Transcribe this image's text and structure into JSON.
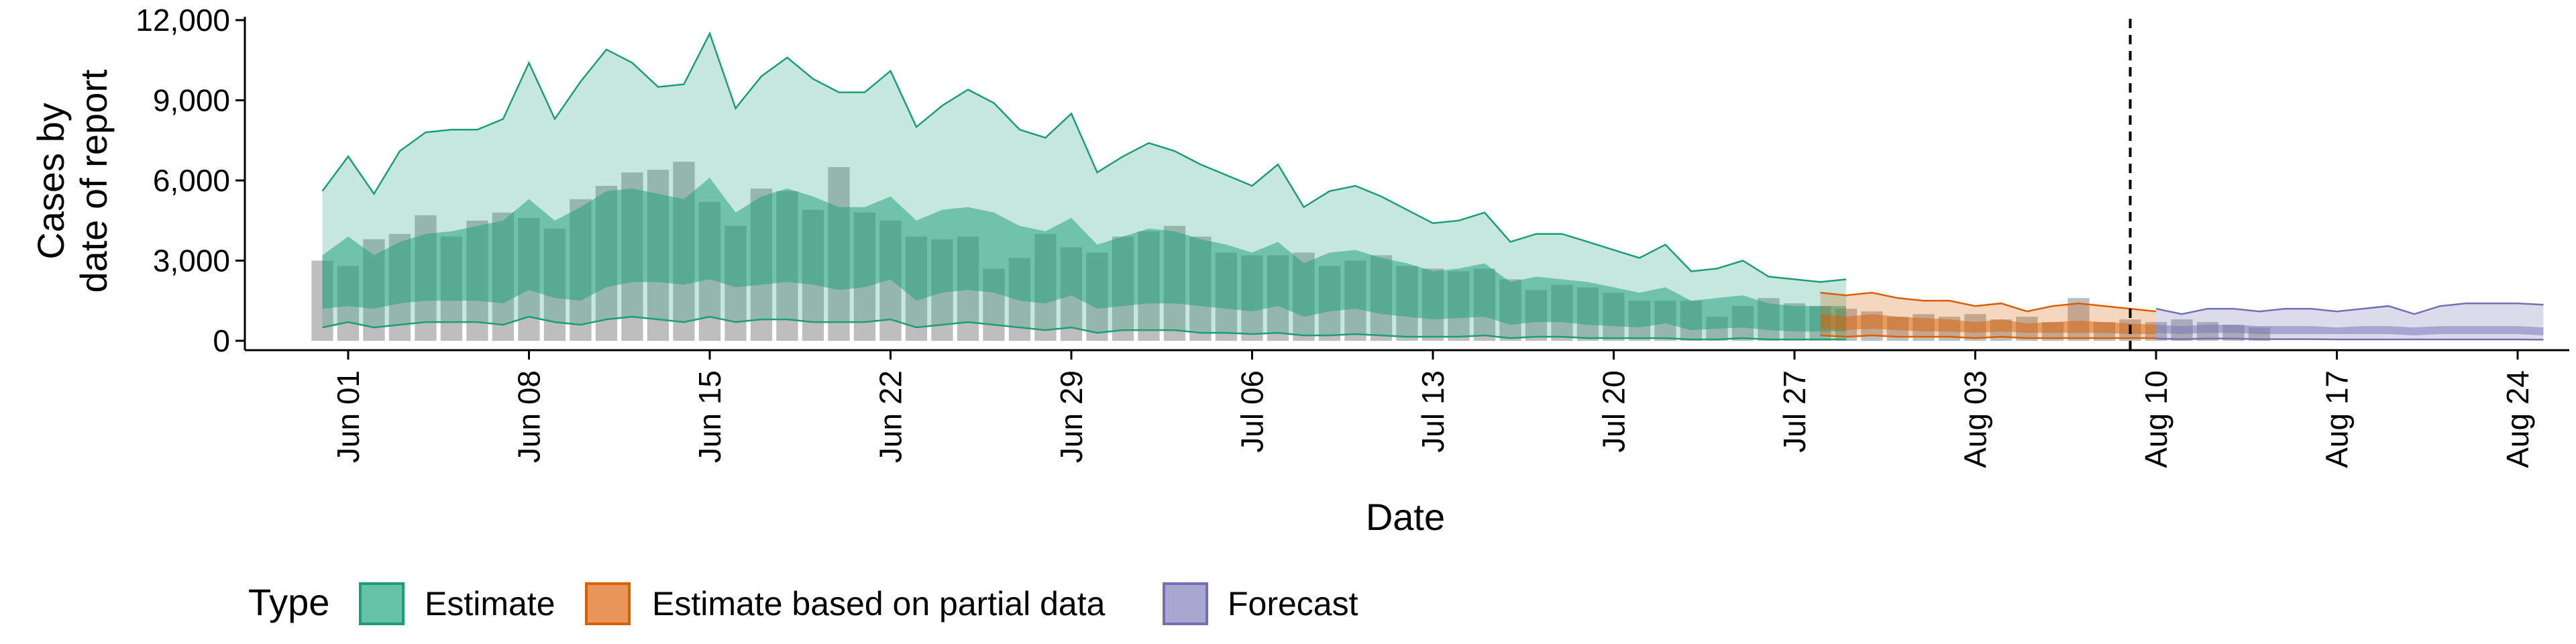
{
  "chart_data": {
    "type": "area",
    "xlabel": "Date",
    "ylabel_lines": [
      "Cases by",
      "date of report"
    ],
    "ylim": [
      0,
      12000
    ],
    "y_ticks": [
      0,
      3000,
      6000,
      9000,
      12000
    ],
    "y_tick_labels": [
      "0",
      "3,000",
      "6,000",
      "9,000",
      "12,000"
    ],
    "x_domain": [
      "2020-05-28",
      "2020-08-26"
    ],
    "x_ticks": [
      "2020-06-01",
      "2020-06-08",
      "2020-06-15",
      "2020-06-22",
      "2020-06-29",
      "2020-07-06",
      "2020-07-13",
      "2020-07-20",
      "2020-07-27",
      "2020-08-03",
      "2020-08-10",
      "2020-08-17",
      "2020-08-24"
    ],
    "x_tick_labels": [
      "Jun 01",
      "Jun 08",
      "Jun 15",
      "Jun 22",
      "Jun 29",
      "Jul 06",
      "Jul 13",
      "Jul 20",
      "Jul 27",
      "Aug 03",
      "Aug 10",
      "Aug 17",
      "Aug 24"
    ],
    "forecast_start_line": "2020-08-09",
    "colors": {
      "reported_bars": "#b3b3b3",
      "estimate": "#1b9e77",
      "partial": "#d95f02",
      "forecast": "#7570b3"
    },
    "legend": {
      "title": "Type",
      "position": "bottom",
      "items": [
        {
          "label": "Estimate",
          "fill": "#66c2a5",
          "stroke": "#1b9e77"
        },
        {
          "label": "Estimate based on partial data",
          "fill": "#e8945b",
          "stroke": "#d95f02"
        },
        {
          "label": "Forecast",
          "fill": "#a9a6d1",
          "stroke": "#7570b3"
        }
      ]
    },
    "reported_cases": {
      "start": "2020-05-31",
      "values": [
        3000,
        2800,
        3800,
        4000,
        4700,
        3900,
        4500,
        4800,
        4600,
        4200,
        5300,
        5800,
        6300,
        6400,
        6700,
        5200,
        4300,
        5700,
        5600,
        4900,
        6500,
        4800,
        4500,
        3900,
        3800,
        3900,
        2700,
        3100,
        4000,
        3500,
        3300,
        3900,
        4100,
        4300,
        3900,
        3300,
        3200,
        3200,
        3300,
        2800,
        3000,
        3200,
        2800,
        2700,
        2600,
        2700,
        2300,
        1900,
        2100,
        2000,
        1800,
        1500,
        1500,
        1500,
        900,
        1300,
        1600,
        1400,
        1300,
        1200,
        1100,
        900,
        1000,
        900,
        1000,
        800,
        900,
        700,
        1600,
        700,
        800,
        700,
        800,
        700,
        600,
        500
      ]
    },
    "series": [
      {
        "name": "Estimate",
        "start": "2020-05-31",
        "upper90": [
          5600,
          6900,
          5500,
          7100,
          7800,
          7900,
          7900,
          8300,
          10400,
          8300,
          9700,
          10900,
          10400,
          9500,
          9600,
          11500,
          8700,
          9900,
          10600,
          9800,
          9300,
          9300,
          10100,
          8000,
          8800,
          9400,
          8900,
          7900,
          7600,
          8500,
          6300,
          6900,
          7400,
          7100,
          6600,
          6200,
          5800,
          6600,
          5000,
          5600,
          5800,
          5400,
          4900,
          4400,
          4500,
          4800,
          3700,
          4000,
          4000,
          3700,
          3400,
          3100,
          3600,
          2600,
          2700,
          3000,
          2400,
          2300,
          2200,
          2300
        ],
        "upper50": [
          3200,
          3900,
          3200,
          3700,
          4000,
          4100,
          4300,
          4500,
          5300,
          4500,
          5000,
          5600,
          5700,
          5500,
          5300,
          6100,
          4800,
          5400,
          5700,
          5400,
          5000,
          5000,
          5400,
          4500,
          4900,
          5000,
          4800,
          4300,
          4100,
          4600,
          3600,
          3900,
          4200,
          4100,
          3800,
          3600,
          3300,
          3700,
          2900,
          3300,
          3400,
          3100,
          2900,
          2600,
          2700,
          2900,
          2200,
          2400,
          2300,
          2200,
          2000,
          1800,
          2000,
          1500,
          1600,
          1700,
          1400,
          1300,
          1300,
          1300
        ],
        "lower50": [
          1200,
          1300,
          1200,
          1400,
          1500,
          1500,
          1500,
          1400,
          1900,
          1600,
          1500,
          2000,
          2200,
          2200,
          2100,
          2300,
          2000,
          2100,
          2200,
          2100,
          1900,
          2000,
          2300,
          1500,
          1800,
          1900,
          1800,
          1500,
          1400,
          1700,
          1200,
          1300,
          1400,
          1400,
          1300,
          1200,
          1100,
          1300,
          900,
          1100,
          1200,
          1000,
          900,
          800,
          850,
          900,
          600,
          700,
          700,
          600,
          550,
          500,
          650,
          400,
          450,
          500,
          400,
          350,
          350,
          350
        ],
        "lower90": [
          500,
          700,
          500,
          600,
          700,
          700,
          700,
          600,
          900,
          700,
          600,
          800,
          900,
          800,
          700,
          900,
          700,
          800,
          800,
          700,
          700,
          700,
          800,
          500,
          600,
          700,
          600,
          500,
          400,
          500,
          300,
          400,
          400,
          400,
          300,
          300,
          250,
          300,
          200,
          200,
          250,
          200,
          150,
          150,
          150,
          200,
          100,
          150,
          150,
          100,
          100,
          100,
          100,
          50,
          50,
          100,
          50,
          50,
          50,
          50
        ]
      },
      {
        "name": "Estimate based on partial data",
        "start": "2020-07-28",
        "upper90": [
          1800,
          1700,
          1800,
          1600,
          1500,
          1500,
          1300,
          1400,
          1100,
          1300,
          1400,
          1300,
          1200,
          1100
        ],
        "upper50": [
          1000,
          900,
          1000,
          900,
          850,
          800,
          700,
          800,
          650,
          700,
          750,
          700,
          650,
          600
        ],
        "lower50": [
          450,
          400,
          450,
          400,
          350,
          350,
          300,
          350,
          300,
          300,
          300,
          300,
          250,
          250
        ],
        "lower90": [
          200,
          150,
          200,
          150,
          150,
          150,
          100,
          150,
          100,
          100,
          100,
          100,
          100,
          100
        ]
      },
      {
        "name": "Forecast",
        "start": "2020-08-10",
        "upper90": [
          1200,
          1000,
          1200,
          1200,
          1100,
          1200,
          1200,
          1100,
          1200,
          1300,
          1000,
          1300,
          1400,
          1400,
          1400,
          1350
        ],
        "upper50": [
          600,
          550,
          600,
          600,
          550,
          550,
          550,
          500,
          550,
          550,
          500,
          550,
          550,
          550,
          550,
          500
        ],
        "lower50": [
          300,
          250,
          300,
          300,
          250,
          250,
          250,
          250,
          250,
          250,
          200,
          250,
          250,
          250,
          250,
          200
        ],
        "lower90": [
          80,
          60,
          80,
          80,
          60,
          60,
          60,
          50,
          50,
          50,
          50,
          50,
          50,
          50,
          50,
          40
        ]
      }
    ]
  }
}
